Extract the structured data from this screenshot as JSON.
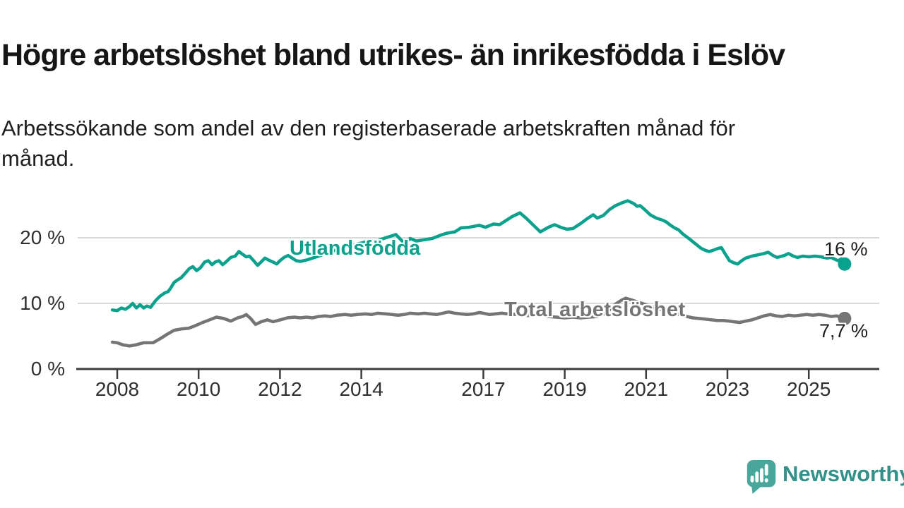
{
  "header": {
    "title": "Högre arbetslöshet bland utrikes- än inrikesfödda i Eslöv",
    "subtitle": "Arbetssökande som andel av den registerbaserade arbetskraften månad för månad."
  },
  "footer": {
    "brand": "Newsworthy"
  },
  "chart_data": {
    "type": "line",
    "title": "Högre arbetslöshet bland utrikes- än inrikesfödda i Eslöv",
    "subtitle": "Arbetssökande som andel av den registerbaserade arbetskraften månad för månad.",
    "unit": "%",
    "grid": "horizontal",
    "grid_color": "#d9d9d9",
    "axis_color": "#3d3d3d",
    "x_base": 2008,
    "xlim": [
      2007.8,
      2026.2
    ],
    "ylim": [
      0,
      27
    ],
    "x_ticks": [
      2008,
      2010,
      2012,
      2014,
      2017,
      2019,
      2021,
      2023,
      2025
    ],
    "x_tick_labels": [
      "2008",
      "2010",
      "2012",
      "2014",
      "2017",
      "2019",
      "2021",
      "2023",
      "2025"
    ],
    "y_ticks": [
      {
        "value": 20,
        "label": "20 %"
      },
      {
        "value": 10,
        "label": "10 %"
      },
      {
        "value": 0,
        "label": "0 %"
      }
    ],
    "series": [
      {
        "name": "Utlandsfödda",
        "color": "#0aa18d",
        "end_label": "16 %",
        "end_value": 16.0,
        "points": [
          [
            2007.88,
            9.0
          ],
          [
            2008.0,
            8.9
          ],
          [
            2008.1,
            9.3
          ],
          [
            2008.2,
            9.1
          ],
          [
            2008.3,
            9.5
          ],
          [
            2008.38,
            10.0
          ],
          [
            2008.47,
            9.3
          ],
          [
            2008.56,
            9.8
          ],
          [
            2008.65,
            9.3
          ],
          [
            2008.73,
            9.6
          ],
          [
            2008.82,
            9.4
          ],
          [
            2008.94,
            10.4
          ],
          [
            2009.05,
            11.1
          ],
          [
            2009.17,
            11.6
          ],
          [
            2009.25,
            11.8
          ],
          [
            2009.31,
            12.3
          ],
          [
            2009.4,
            13.2
          ],
          [
            2009.49,
            13.6
          ],
          [
            2009.57,
            13.9
          ],
          [
            2009.66,
            14.5
          ],
          [
            2009.77,
            15.3
          ],
          [
            2009.86,
            15.6
          ],
          [
            2009.95,
            15.0
          ],
          [
            2010.04,
            15.4
          ],
          [
            2010.15,
            16.3
          ],
          [
            2010.24,
            16.5
          ],
          [
            2010.33,
            15.9
          ],
          [
            2010.41,
            16.3
          ],
          [
            2010.5,
            16.5
          ],
          [
            2010.59,
            15.9
          ],
          [
            2010.67,
            16.3
          ],
          [
            2010.79,
            17.0
          ],
          [
            2010.9,
            17.2
          ],
          [
            2010.99,
            17.9
          ],
          [
            2011.08,
            17.5
          ],
          [
            2011.17,
            17.1
          ],
          [
            2011.25,
            17.2
          ],
          [
            2011.34,
            16.6
          ],
          [
            2011.45,
            15.8
          ],
          [
            2011.55,
            16.4
          ],
          [
            2011.63,
            16.9
          ],
          [
            2011.72,
            16.6
          ],
          [
            2011.83,
            16.3
          ],
          [
            2011.92,
            16.0
          ],
          [
            2012.0,
            16.5
          ],
          [
            2012.1,
            17.0
          ],
          [
            2012.2,
            17.3
          ],
          [
            2012.3,
            16.9
          ],
          [
            2012.4,
            16.5
          ],
          [
            2012.5,
            16.4
          ],
          [
            2012.65,
            16.6
          ],
          [
            2012.8,
            16.9
          ],
          [
            2013.0,
            17.3
          ],
          [
            2013.2,
            17.8
          ],
          [
            2013.4,
            18.2
          ],
          [
            2013.6,
            18.6
          ],
          [
            2013.8,
            18.9
          ],
          [
            2014.0,
            19.2
          ],
          [
            2014.2,
            19.5
          ],
          [
            2014.35,
            19.4
          ],
          [
            2014.5,
            19.8
          ],
          [
            2014.65,
            20.1
          ],
          [
            2014.85,
            20.5
          ],
          [
            2015.05,
            19.2
          ],
          [
            2015.2,
            19.9
          ],
          [
            2015.35,
            19.5
          ],
          [
            2015.55,
            19.7
          ],
          [
            2015.75,
            19.9
          ],
          [
            2015.95,
            20.4
          ],
          [
            2016.1,
            20.7
          ],
          [
            2016.3,
            20.9
          ],
          [
            2016.45,
            21.5
          ],
          [
            2016.65,
            21.6
          ],
          [
            2016.9,
            21.9
          ],
          [
            2017.05,
            21.6
          ],
          [
            2017.25,
            22.1
          ],
          [
            2017.4,
            22.0
          ],
          [
            2017.55,
            22.6
          ],
          [
            2017.7,
            23.2
          ],
          [
            2017.9,
            23.8
          ],
          [
            2018.05,
            23.0
          ],
          [
            2018.25,
            21.8
          ],
          [
            2018.4,
            20.9
          ],
          [
            2018.6,
            21.6
          ],
          [
            2018.75,
            22.0
          ],
          [
            2018.9,
            21.6
          ],
          [
            2019.05,
            21.3
          ],
          [
            2019.2,
            21.4
          ],
          [
            2019.4,
            22.2
          ],
          [
            2019.55,
            22.9
          ],
          [
            2019.7,
            23.5
          ],
          [
            2019.8,
            23.0
          ],
          [
            2019.95,
            23.4
          ],
          [
            2020.1,
            24.3
          ],
          [
            2020.25,
            24.9
          ],
          [
            2020.4,
            25.3
          ],
          [
            2020.55,
            25.65
          ],
          [
            2020.7,
            25.2
          ],
          [
            2020.78,
            24.8
          ],
          [
            2020.85,
            24.9
          ],
          [
            2020.95,
            24.4
          ],
          [
            2021.1,
            23.5
          ],
          [
            2021.25,
            23.0
          ],
          [
            2021.4,
            22.7
          ],
          [
            2021.5,
            22.4
          ],
          [
            2021.6,
            21.9
          ],
          [
            2021.7,
            21.5
          ],
          [
            2021.8,
            21.2
          ],
          [
            2021.9,
            20.6
          ],
          [
            2022.05,
            19.9
          ],
          [
            2022.15,
            19.4
          ],
          [
            2022.25,
            18.9
          ],
          [
            2022.35,
            18.4
          ],
          [
            2022.45,
            18.1
          ],
          [
            2022.55,
            17.9
          ],
          [
            2022.65,
            18.1
          ],
          [
            2022.78,
            18.4
          ],
          [
            2022.85,
            18.5
          ],
          [
            2022.95,
            17.5
          ],
          [
            2023.05,
            16.5
          ],
          [
            2023.15,
            16.2
          ],
          [
            2023.25,
            16.0
          ],
          [
            2023.35,
            16.5
          ],
          [
            2023.45,
            16.9
          ],
          [
            2023.6,
            17.2
          ],
          [
            2023.75,
            17.4
          ],
          [
            2023.9,
            17.6
          ],
          [
            2024.0,
            17.8
          ],
          [
            2024.12,
            17.3
          ],
          [
            2024.22,
            17.0
          ],
          [
            2024.4,
            17.3
          ],
          [
            2024.5,
            17.6
          ],
          [
            2024.62,
            17.2
          ],
          [
            2024.72,
            17.0
          ],
          [
            2024.85,
            17.2
          ],
          [
            2025.0,
            17.1
          ],
          [
            2025.15,
            17.2
          ],
          [
            2025.3,
            17.1
          ],
          [
            2025.45,
            16.9
          ],
          [
            2025.55,
            17.0
          ],
          [
            2025.65,
            16.7
          ],
          [
            2025.72,
            16.5
          ],
          [
            2025.8,
            16.8
          ],
          [
            2025.88,
            16.0
          ]
        ]
      },
      {
        "name": "Total arbetslöshet",
        "color": "#757575",
        "end_label": "7,7 %",
        "end_value": 7.7,
        "points": [
          [
            2007.88,
            4.1
          ],
          [
            2008.0,
            4.0
          ],
          [
            2008.13,
            3.7
          ],
          [
            2008.3,
            3.5
          ],
          [
            2008.47,
            3.7
          ],
          [
            2008.65,
            4.0
          ],
          [
            2008.88,
            4.0
          ],
          [
            2009.05,
            4.6
          ],
          [
            2009.23,
            5.3
          ],
          [
            2009.4,
            5.9
          ],
          [
            2009.57,
            6.1
          ],
          [
            2009.75,
            6.2
          ],
          [
            2009.92,
            6.6
          ],
          [
            2010.1,
            7.1
          ],
          [
            2010.27,
            7.5
          ],
          [
            2010.44,
            7.9
          ],
          [
            2010.62,
            7.7
          ],
          [
            2010.79,
            7.3
          ],
          [
            2010.96,
            7.8
          ],
          [
            2011.08,
            8.0
          ],
          [
            2011.17,
            8.3
          ],
          [
            2011.28,
            7.7
          ],
          [
            2011.4,
            6.8
          ],
          [
            2011.54,
            7.2
          ],
          [
            2011.69,
            7.5
          ],
          [
            2011.83,
            7.2
          ],
          [
            2012.01,
            7.5
          ],
          [
            2012.18,
            7.8
          ],
          [
            2012.35,
            7.9
          ],
          [
            2012.5,
            7.8
          ],
          [
            2012.65,
            7.9
          ],
          [
            2012.8,
            7.8
          ],
          [
            2012.95,
            8.0
          ],
          [
            2013.1,
            8.1
          ],
          [
            2013.25,
            8.0
          ],
          [
            2013.4,
            8.2
          ],
          [
            2013.6,
            8.3
          ],
          [
            2013.75,
            8.2
          ],
          [
            2013.9,
            8.3
          ],
          [
            2014.1,
            8.4
          ],
          [
            2014.25,
            8.3
          ],
          [
            2014.4,
            8.5
          ],
          [
            2014.6,
            8.4
          ],
          [
            2014.75,
            8.3
          ],
          [
            2014.9,
            8.2
          ],
          [
            2015.05,
            8.3
          ],
          [
            2015.2,
            8.5
          ],
          [
            2015.4,
            8.4
          ],
          [
            2015.55,
            8.5
          ],
          [
            2015.7,
            8.4
          ],
          [
            2015.85,
            8.3
          ],
          [
            2016.0,
            8.5
          ],
          [
            2016.15,
            8.7
          ],
          [
            2016.3,
            8.5
          ],
          [
            2016.45,
            8.4
          ],
          [
            2016.6,
            8.3
          ],
          [
            2016.75,
            8.4
          ],
          [
            2016.9,
            8.6
          ],
          [
            2017.0,
            8.5
          ],
          [
            2017.15,
            8.3
          ],
          [
            2017.3,
            8.4
          ],
          [
            2017.45,
            8.5
          ],
          [
            2017.6,
            8.4
          ],
          [
            2017.8,
            8.3
          ],
          [
            2018.0,
            8.2
          ],
          [
            2018.2,
            8.1
          ],
          [
            2018.4,
            8.2
          ],
          [
            2018.6,
            8.0
          ],
          [
            2018.8,
            7.9
          ],
          [
            2019.0,
            7.8
          ],
          [
            2019.2,
            7.9
          ],
          [
            2019.4,
            7.8
          ],
          [
            2019.6,
            7.9
          ],
          [
            2019.8,
            8.0
          ],
          [
            2019.95,
            8.3
          ],
          [
            2020.1,
            9.0
          ],
          [
            2020.25,
            9.9
          ],
          [
            2020.4,
            10.5
          ],
          [
            2020.5,
            10.8
          ],
          [
            2020.6,
            10.6
          ],
          [
            2020.75,
            10.3
          ],
          [
            2020.9,
            10.0
          ],
          [
            2021.05,
            9.7
          ],
          [
            2021.2,
            9.4
          ],
          [
            2021.4,
            9.0
          ],
          [
            2021.6,
            8.6
          ],
          [
            2021.8,
            8.3
          ],
          [
            2022.0,
            8.0
          ],
          [
            2022.15,
            7.8
          ],
          [
            2022.3,
            7.7
          ],
          [
            2022.45,
            7.6
          ],
          [
            2022.6,
            7.5
          ],
          [
            2022.75,
            7.4
          ],
          [
            2022.9,
            7.4
          ],
          [
            2023.05,
            7.3
          ],
          [
            2023.15,
            7.2
          ],
          [
            2023.3,
            7.1
          ],
          [
            2023.45,
            7.3
          ],
          [
            2023.6,
            7.5
          ],
          [
            2023.75,
            7.8
          ],
          [
            2023.9,
            8.1
          ],
          [
            2024.05,
            8.3
          ],
          [
            2024.2,
            8.1
          ],
          [
            2024.35,
            8.0
          ],
          [
            2024.5,
            8.2
          ],
          [
            2024.65,
            8.1
          ],
          [
            2024.8,
            8.2
          ],
          [
            2024.95,
            8.3
          ],
          [
            2025.1,
            8.2
          ],
          [
            2025.25,
            8.3
          ],
          [
            2025.4,
            8.2
          ],
          [
            2025.55,
            8.0
          ],
          [
            2025.68,
            8.1
          ],
          [
            2025.78,
            7.9
          ],
          [
            2025.88,
            7.7
          ]
        ]
      }
    ]
  }
}
